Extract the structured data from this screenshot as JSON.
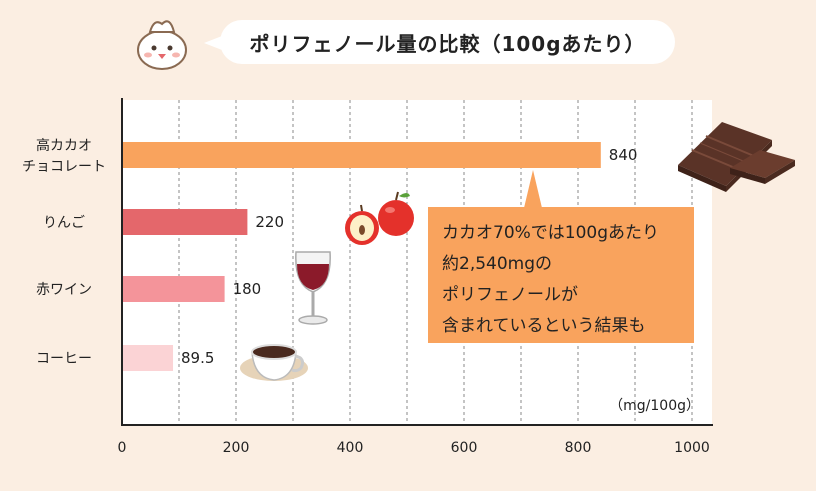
{
  "title": "ポリフェノール量の比較（100gあたり）",
  "chart_data": {
    "type": "bar",
    "orientation": "horizontal",
    "categories": [
      "高カカオ\nチョコレート",
      "りんご",
      "赤ワイン",
      "コーヒー"
    ],
    "values": [
      840,
      220,
      180,
      89.5
    ],
    "value_labels": [
      "840",
      "220",
      "180",
      "89.5"
    ],
    "colors": [
      "#f9a35d",
      "#e4676b",
      "#f4949a",
      "#fbd3d5"
    ],
    "xlim": [
      0,
      1000
    ],
    "xticks": [
      0,
      200,
      400,
      600,
      800,
      1000
    ],
    "unit_label": "（mg/100g）",
    "grid": true
  },
  "callout": {
    "lines": [
      "カカオ70%では100gあたり",
      "約2,540mgの",
      "ポリフェノールが",
      "含まれているという結果も"
    ]
  },
  "icons": [
    "mascot-chick-icon",
    "chocolate-icon",
    "apple-icon",
    "wine-glass-icon",
    "coffee-cup-icon"
  ]
}
